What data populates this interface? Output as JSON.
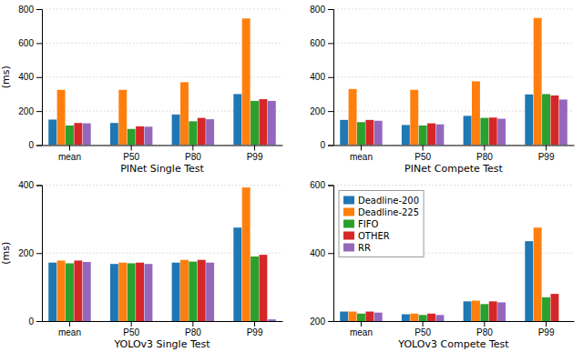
{
  "chart_data": [
    {
      "type": "bar",
      "xlabel": "PINet Single Test",
      "ylabel": "(ms)",
      "categories": [
        "mean",
        "P50",
        "P80",
        "P99"
      ],
      "series": [
        {
          "name": "Deadline-200",
          "values": [
            150,
            130,
            180,
            300
          ]
        },
        {
          "name": "Deadline-225",
          "values": [
            325,
            325,
            370,
            745
          ]
        },
        {
          "name": "FIFO",
          "values": [
            115,
            95,
            140,
            260
          ]
        },
        {
          "name": "OTHER",
          "values": [
            130,
            110,
            160,
            270
          ]
        },
        {
          "name": "RR",
          "values": [
            128,
            108,
            152,
            260
          ]
        }
      ],
      "ylim": [
        0,
        800
      ],
      "yticks": [
        0,
        200,
        400,
        600,
        800
      ],
      "grid": true
    },
    {
      "type": "bar",
      "xlabel": "PINet Compete Test",
      "categories": [
        "mean",
        "P50",
        "P80",
        "P99"
      ],
      "series": [
        {
          "name": "Deadline-200",
          "values": [
            148,
            118,
            172,
            298
          ]
        },
        {
          "name": "Deadline-225",
          "values": [
            330,
            325,
            375,
            748
          ]
        },
        {
          "name": "FIFO",
          "values": [
            135,
            115,
            160,
            300
          ]
        },
        {
          "name": "OTHER",
          "values": [
            148,
            128,
            162,
            292
          ]
        },
        {
          "name": "RR",
          "values": [
            143,
            122,
            155,
            268
          ]
        }
      ],
      "ylim": [
        0,
        800
      ],
      "yticks": [
        0,
        200,
        400,
        600,
        800
      ],
      "grid": true
    },
    {
      "type": "bar",
      "xlabel": "YOLOv3 Single Test",
      "ylabel": "(ms)",
      "categories": [
        "mean",
        "P50",
        "P80",
        "P99"
      ],
      "series": [
        {
          "name": "Deadline-200",
          "values": [
            172,
            168,
            172,
            275
          ]
        },
        {
          "name": "Deadline-225",
          "values": [
            178,
            172,
            180,
            393
          ]
        },
        {
          "name": "FIFO",
          "values": [
            170,
            170,
            175,
            190
          ]
        },
        {
          "name": "OTHER",
          "values": [
            178,
            172,
            180,
            195
          ]
        },
        {
          "name": "RR",
          "values": [
            174,
            168,
            172,
            5
          ]
        }
      ],
      "ylim": [
        0,
        400
      ],
      "yticks": [
        0,
        200,
        400
      ],
      "grid": true
    },
    {
      "type": "bar",
      "xlabel": "YOLOv3 Compete Test",
      "categories": [
        "mean",
        "P50",
        "P80",
        "P99"
      ],
      "series": [
        {
          "name": "Deadline-200",
          "values": [
            228,
            220,
            258,
            435
          ]
        },
        {
          "name": "Deadline-225",
          "values": [
            228,
            222,
            260,
            475
          ]
        },
        {
          "name": "FIFO",
          "values": [
            222,
            218,
            250,
            270
          ]
        },
        {
          "name": "OTHER",
          "values": [
            228,
            222,
            258,
            280
          ]
        },
        {
          "name": "RR",
          "values": [
            225,
            218,
            255,
            200
          ]
        }
      ],
      "ylim": [
        200,
        600
      ],
      "yticks": [
        200,
        400,
        600
      ],
      "grid": true,
      "legend": "upper left"
    }
  ]
}
